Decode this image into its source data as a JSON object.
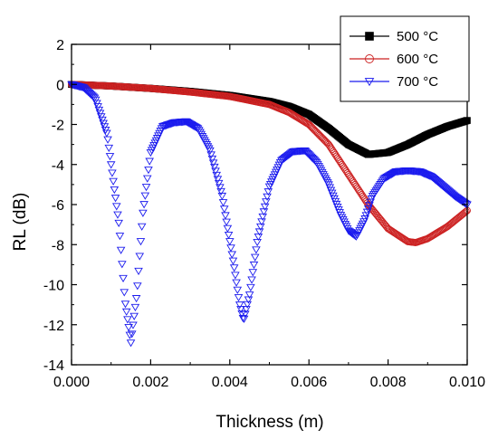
{
  "chart_data": {
    "type": "scatter",
    "title": "",
    "xlabel": "Thickness (m)",
    "ylabel": "RL (dB)",
    "xlim": [
      0,
      0.01
    ],
    "ylim": [
      -14,
      2
    ],
    "xticks": [
      {
        "value": 0.0,
        "label": "0.000"
      },
      {
        "value": 0.002,
        "label": "0.002"
      },
      {
        "value": 0.004,
        "label": "0.004"
      },
      {
        "value": 0.006,
        "label": "0.006"
      },
      {
        "value": 0.008,
        "label": "0.008"
      },
      {
        "value": 0.01,
        "label": "0.010"
      }
    ],
    "yticks": [
      {
        "value": 2,
        "label": "2"
      },
      {
        "value": 0,
        "label": "0"
      },
      {
        "value": -2,
        "label": "-2"
      },
      {
        "value": -4,
        "label": "-4"
      },
      {
        "value": -6,
        "label": "-6"
      },
      {
        "value": -8,
        "label": "-8"
      },
      {
        "value": -10,
        "label": "-10"
      },
      {
        "value": -12,
        "label": "-12"
      },
      {
        "value": -14,
        "label": "-14"
      }
    ],
    "grid": false,
    "legend": "top-right",
    "series": [
      {
        "name": "500 °C",
        "marker": "square-filled",
        "color": "#000000",
        "x": [
          0.0,
          0.001,
          0.002,
          0.003,
          0.004,
          0.005,
          0.0055,
          0.006,
          0.0065,
          0.007,
          0.0075,
          0.008,
          0.0085,
          0.009,
          0.0095,
          0.01
        ],
        "y": [
          0.0,
          -0.08,
          -0.2,
          -0.35,
          -0.55,
          -0.85,
          -1.1,
          -1.5,
          -2.2,
          -3.0,
          -3.5,
          -3.4,
          -3.0,
          -2.5,
          -2.1,
          -1.8
        ]
      },
      {
        "name": "600 °C",
        "marker": "circle-open",
        "color": "#cc2222",
        "x": [
          0.0,
          0.001,
          0.002,
          0.003,
          0.004,
          0.005,
          0.0055,
          0.006,
          0.0065,
          0.007,
          0.0075,
          0.008,
          0.0085,
          0.0087,
          0.009,
          0.0095,
          0.01
        ],
        "y": [
          0.0,
          -0.08,
          -0.2,
          -0.38,
          -0.6,
          -1.0,
          -1.4,
          -2.0,
          -3.0,
          -4.5,
          -6.0,
          -7.2,
          -7.85,
          -7.9,
          -7.7,
          -7.1,
          -6.3
        ]
      },
      {
        "name": "700 °C",
        "marker": "triangle-down-open",
        "color": "#1a1aee",
        "x": [
          0.0,
          0.0003,
          0.0006,
          0.0009,
          0.0012,
          0.00135,
          0.0015,
          0.00165,
          0.0018,
          0.002,
          0.0023,
          0.0026,
          0.0029,
          0.0032,
          0.0035,
          0.0038,
          0.0041,
          0.00425,
          0.00435,
          0.0045,
          0.0047,
          0.005,
          0.0053,
          0.0056,
          0.0059,
          0.0062,
          0.0065,
          0.0068,
          0.007,
          0.0072,
          0.0074,
          0.0076,
          0.0079,
          0.0082,
          0.0085,
          0.0088,
          0.0091,
          0.0094,
          0.0097,
          0.01
        ],
        "y": [
          0.0,
          -0.15,
          -0.7,
          -2.5,
          -7.0,
          -10.8,
          -12.9,
          -10.5,
          -6.5,
          -3.4,
          -2.1,
          -1.9,
          -1.85,
          -2.2,
          -3.3,
          -5.5,
          -9.0,
          -11.0,
          -11.8,
          -10.5,
          -7.8,
          -5.1,
          -3.8,
          -3.35,
          -3.3,
          -3.9,
          -5.0,
          -6.5,
          -7.3,
          -7.6,
          -6.8,
          -5.6,
          -4.7,
          -4.35,
          -4.3,
          -4.35,
          -4.6,
          -5.1,
          -5.6,
          -6.0
        ]
      }
    ]
  }
}
